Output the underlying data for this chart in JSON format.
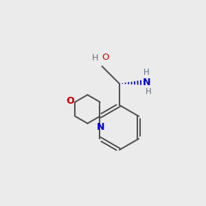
{
  "bg_color": "#ebebeb",
  "bond_color": "#505050",
  "N_color": "#0000cc",
  "O_color": "#cc0000",
  "lw": 1.5,
  "fig_size": [
    3.0,
    3.0
  ],
  "dpi": 100,
  "xlim": [
    0,
    10
  ],
  "ylim": [
    0,
    10
  ]
}
